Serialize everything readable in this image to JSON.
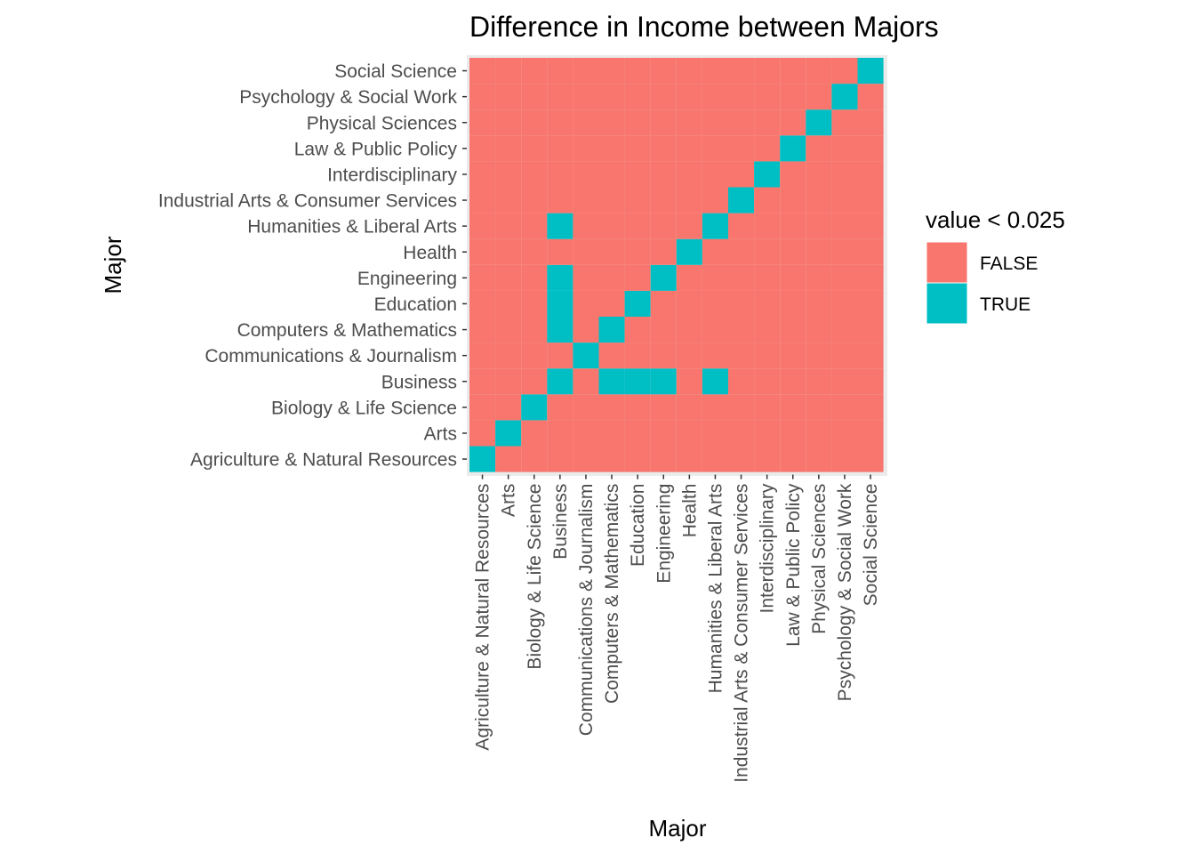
{
  "chart_data": {
    "type": "heatmap",
    "title": "Difference in Income between Majors",
    "xlabel": "Major",
    "ylabel": "Major",
    "categories": [
      "Agriculture & Natural Resources",
      "Arts",
      "Biology & Life Science",
      "Business",
      "Communications & Journalism",
      "Computers & Mathematics",
      "Education",
      "Engineering",
      "Health",
      "Humanities & Liberal Arts",
      "Industrial Arts & Consumer Services",
      "Interdisciplinary",
      "Law & Public Policy",
      "Physical Sciences",
      "Psychology & Social Work",
      "Social Science"
    ],
    "true_cells": [
      [
        "Agriculture & Natural Resources",
        "Agriculture & Natural Resources"
      ],
      [
        "Arts",
        "Arts"
      ],
      [
        "Biology & Life Science",
        "Biology & Life Science"
      ],
      [
        "Business",
        "Business"
      ],
      [
        "Business",
        "Computers & Mathematics"
      ],
      [
        "Business",
        "Education"
      ],
      [
        "Business",
        "Engineering"
      ],
      [
        "Business",
        "Humanities & Liberal Arts"
      ],
      [
        "Computers & Mathematics",
        "Business"
      ],
      [
        "Education",
        "Business"
      ],
      [
        "Engineering",
        "Business"
      ],
      [
        "Humanities & Liberal Arts",
        "Business"
      ],
      [
        "Communications & Journalism",
        "Communications & Journalism"
      ],
      [
        "Computers & Mathematics",
        "Computers & Mathematics"
      ],
      [
        "Education",
        "Education"
      ],
      [
        "Engineering",
        "Engineering"
      ],
      [
        "Health",
        "Health"
      ],
      [
        "Humanities & Liberal Arts",
        "Humanities & Liberal Arts"
      ],
      [
        "Industrial Arts & Consumer Services",
        "Industrial Arts & Consumer Services"
      ],
      [
        "Interdisciplinary",
        "Interdisciplinary"
      ],
      [
        "Law & Public Policy",
        "Law & Public Policy"
      ],
      [
        "Physical Sciences",
        "Physical Sciences"
      ],
      [
        "Psychology & Social Work",
        "Psychology & Social Work"
      ],
      [
        "Social Science",
        "Social Science"
      ]
    ],
    "legend": {
      "title": "value < 0.025",
      "position": "right",
      "entries": [
        {
          "label": "FALSE",
          "color": "#F8766D"
        },
        {
          "label": "TRUE",
          "color": "#00BFC4"
        }
      ]
    },
    "colors": {
      "false": "#F8766D",
      "true": "#00BFC4",
      "panel": "#EBEBEB"
    }
  }
}
